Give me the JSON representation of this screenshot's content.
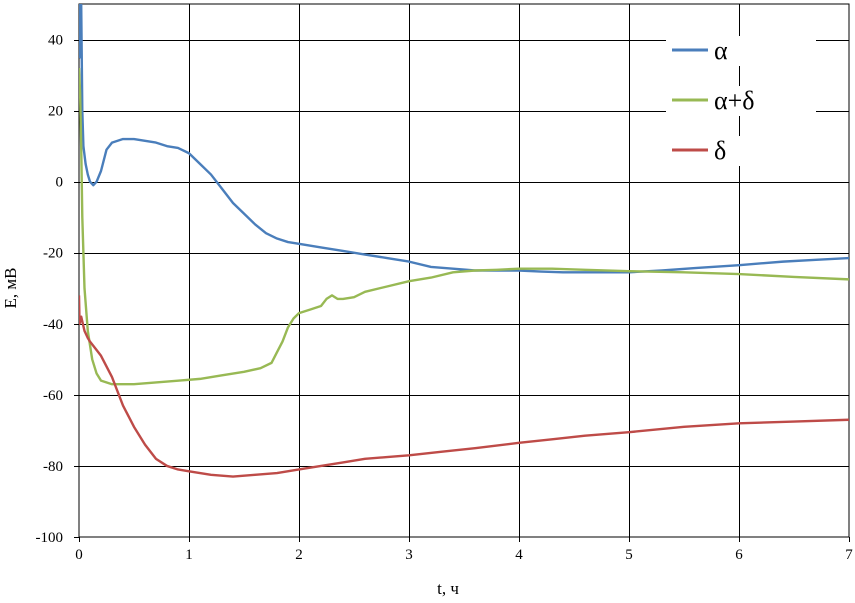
{
  "chart_data": {
    "type": "line",
    "title": "",
    "xlabel": "t, ч",
    "ylabel": "E, мВ",
    "xlim": [
      0,
      7
    ],
    "ylim": [
      -100,
      50
    ],
    "x_ticks": [
      0,
      1,
      2,
      3,
      4,
      5,
      6,
      7
    ],
    "y_ticks": [
      -100,
      -80,
      -60,
      -40,
      -20,
      0,
      20,
      40
    ],
    "grid": true,
    "legend_position": "top-right",
    "colors": {
      "alpha": "#4a7ebb",
      "alpha_delta": "#98b954",
      "delta": "#be4b48",
      "grid": "#000000"
    },
    "series": [
      {
        "name": "α",
        "color": "#4a7ebb",
        "points": [
          [
            0.0,
            50
          ],
          [
            0.01,
            35
          ],
          [
            0.02,
            50
          ],
          [
            0.03,
            20
          ],
          [
            0.04,
            10
          ],
          [
            0.06,
            5
          ],
          [
            0.08,
            2
          ],
          [
            0.1,
            0
          ],
          [
            0.13,
            -1
          ],
          [
            0.16,
            0
          ],
          [
            0.2,
            3
          ],
          [
            0.25,
            9
          ],
          [
            0.3,
            11
          ],
          [
            0.4,
            12
          ],
          [
            0.5,
            12
          ],
          [
            0.6,
            11.5
          ],
          [
            0.7,
            11
          ],
          [
            0.8,
            10
          ],
          [
            0.9,
            9.5
          ],
          [
            1.0,
            8
          ],
          [
            1.1,
            5
          ],
          [
            1.2,
            2
          ],
          [
            1.3,
            -2
          ],
          [
            1.4,
            -6
          ],
          [
            1.5,
            -9
          ],
          [
            1.6,
            -12
          ],
          [
            1.7,
            -14.5
          ],
          [
            1.8,
            -16
          ],
          [
            1.9,
            -17
          ],
          [
            2.0,
            -17.5
          ],
          [
            2.2,
            -18.5
          ],
          [
            2.4,
            -19.5
          ],
          [
            2.6,
            -20.5
          ],
          [
            2.8,
            -21.5
          ],
          [
            3.0,
            -22.5
          ],
          [
            3.2,
            -24
          ],
          [
            3.4,
            -24.5
          ],
          [
            3.6,
            -25
          ],
          [
            3.8,
            -25
          ],
          [
            4.0,
            -25
          ],
          [
            4.2,
            -25.3
          ],
          [
            4.4,
            -25.5
          ],
          [
            4.6,
            -25.5
          ],
          [
            4.8,
            -25.5
          ],
          [
            5.0,
            -25.5
          ],
          [
            5.3,
            -25
          ],
          [
            5.6,
            -24.3
          ],
          [
            6.0,
            -23.5
          ],
          [
            6.4,
            -22.5
          ],
          [
            6.7,
            -22
          ],
          [
            7.0,
            -21.5
          ]
        ]
      },
      {
        "name": "α+δ",
        "color": "#98b954",
        "points": [
          [
            0.0,
            32
          ],
          [
            0.01,
            25
          ],
          [
            0.02,
            10
          ],
          [
            0.03,
            -10
          ],
          [
            0.05,
            -30
          ],
          [
            0.08,
            -42
          ],
          [
            0.12,
            -50
          ],
          [
            0.16,
            -54
          ],
          [
            0.2,
            -56
          ],
          [
            0.3,
            -57
          ],
          [
            0.4,
            -57
          ],
          [
            0.5,
            -57
          ],
          [
            0.7,
            -56.5
          ],
          [
            0.9,
            -56
          ],
          [
            1.1,
            -55.5
          ],
          [
            1.3,
            -54.5
          ],
          [
            1.5,
            -53.5
          ],
          [
            1.65,
            -52.5
          ],
          [
            1.75,
            -51
          ],
          [
            1.8,
            -48
          ],
          [
            1.85,
            -45
          ],
          [
            1.9,
            -41
          ],
          [
            1.95,
            -38.5
          ],
          [
            2.0,
            -37
          ],
          [
            2.1,
            -36
          ],
          [
            2.2,
            -35
          ],
          [
            2.25,
            -33
          ],
          [
            2.3,
            -32
          ],
          [
            2.35,
            -33
          ],
          [
            2.4,
            -33
          ],
          [
            2.5,
            -32.5
          ],
          [
            2.6,
            -31
          ],
          [
            2.8,
            -29.5
          ],
          [
            3.0,
            -28
          ],
          [
            3.2,
            -27
          ],
          [
            3.4,
            -25.5
          ],
          [
            3.6,
            -25
          ],
          [
            3.8,
            -24.8
          ],
          [
            4.0,
            -24.5
          ],
          [
            4.3,
            -24.5
          ],
          [
            4.6,
            -24.8
          ],
          [
            5.0,
            -25.2
          ],
          [
            5.5,
            -25.5
          ],
          [
            6.0,
            -26
          ],
          [
            6.5,
            -26.8
          ],
          [
            7.0,
            -27.5
          ]
        ]
      },
      {
        "name": "δ",
        "color": "#be4b48",
        "points": [
          [
            0.0,
            -32
          ],
          [
            0.005,
            -40
          ],
          [
            0.02,
            -38
          ],
          [
            0.05,
            -42
          ],
          [
            0.08,
            -44
          ],
          [
            0.1,
            -45
          ],
          [
            0.15,
            -47
          ],
          [
            0.2,
            -49
          ],
          [
            0.25,
            -52
          ],
          [
            0.3,
            -55
          ],
          [
            0.35,
            -59
          ],
          [
            0.4,
            -63
          ],
          [
            0.5,
            -69
          ],
          [
            0.6,
            -74
          ],
          [
            0.7,
            -78
          ],
          [
            0.8,
            -80
          ],
          [
            0.9,
            -81
          ],
          [
            1.0,
            -81.5
          ],
          [
            1.2,
            -82.5
          ],
          [
            1.4,
            -83
          ],
          [
            1.6,
            -82.5
          ],
          [
            1.8,
            -82
          ],
          [
            2.0,
            -81
          ],
          [
            2.2,
            -80
          ],
          [
            2.4,
            -79
          ],
          [
            2.6,
            -78
          ],
          [
            2.8,
            -77.5
          ],
          [
            3.0,
            -77
          ],
          [
            3.3,
            -76
          ],
          [
            3.6,
            -75
          ],
          [
            4.0,
            -73.5
          ],
          [
            4.3,
            -72.5
          ],
          [
            4.6,
            -71.5
          ],
          [
            5.0,
            -70.5
          ],
          [
            5.5,
            -69
          ],
          [
            6.0,
            -68
          ],
          [
            6.5,
            -67.5
          ],
          [
            7.0,
            -67
          ]
        ]
      }
    ]
  }
}
